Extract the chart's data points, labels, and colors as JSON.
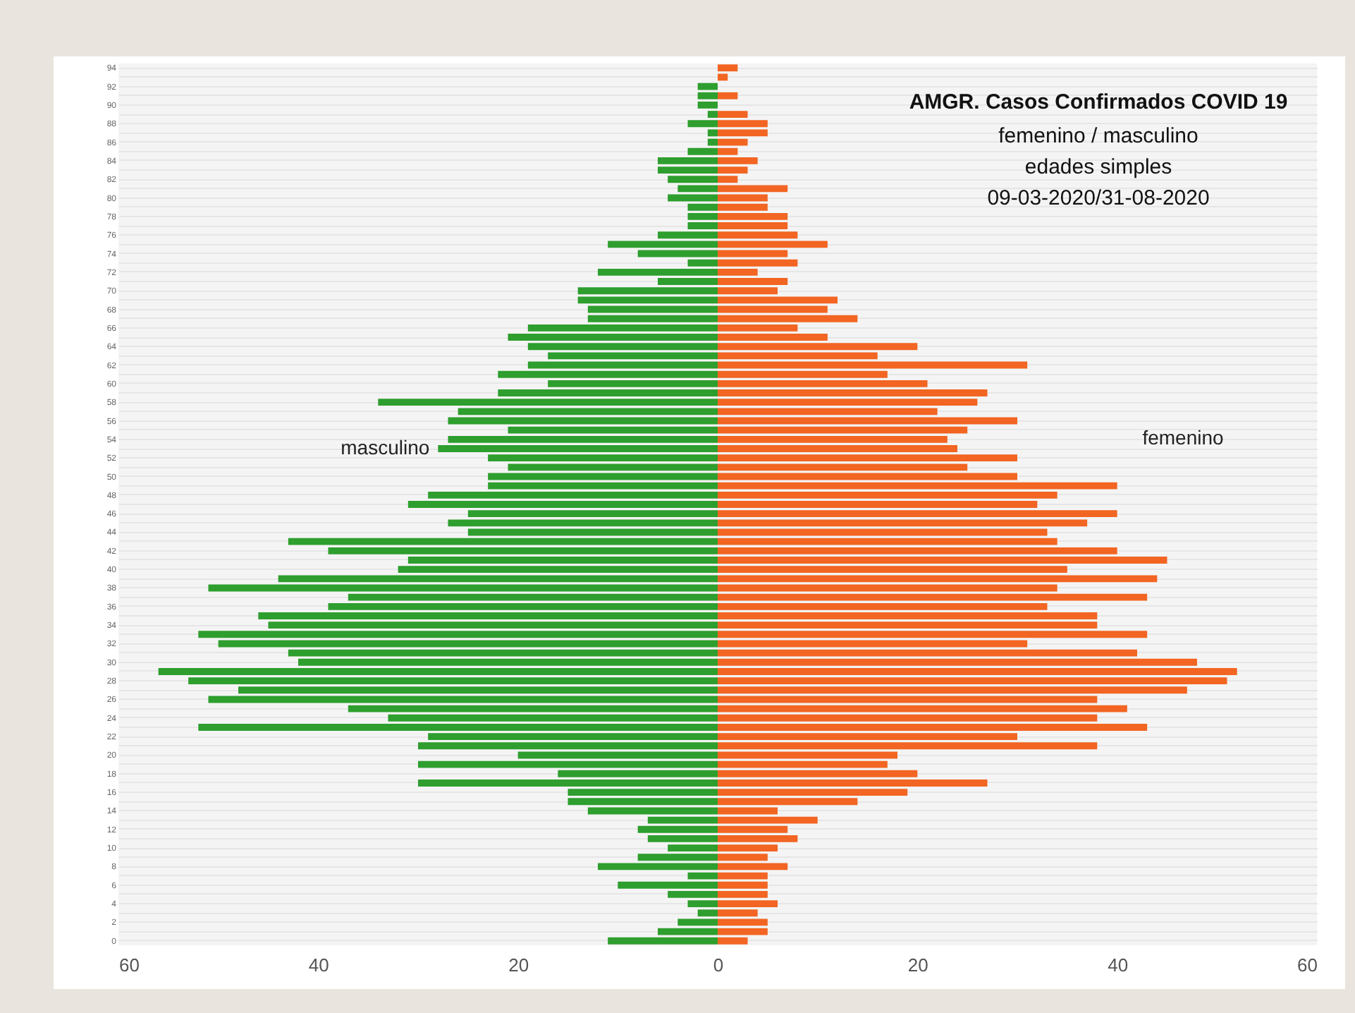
{
  "chart_data": {
    "type": "bar",
    "orientation": "horizontal",
    "title": "AMGR. Casos Confirmados COVID 19",
    "subtitle": "femenino / masculino\nedades simples\n09-03-2020/31-08-2020",
    "categories": [
      "94",
      null,
      "92",
      null,
      "90",
      null,
      "88",
      null,
      "86",
      null,
      "84",
      null,
      "82",
      null,
      "80",
      null,
      "78",
      null,
      "76",
      null,
      "74",
      null,
      "72",
      null,
      "70",
      null,
      "68",
      null,
      "66",
      null,
      "64",
      null,
      "62",
      null,
      "60",
      null,
      "58",
      null,
      "56",
      null,
      "54",
      null,
      "52",
      null,
      "50",
      null,
      "48",
      null,
      "46",
      null,
      "44",
      null,
      "42",
      null,
      "40",
      null,
      "38",
      null,
      "36",
      null,
      "34",
      null,
      "32",
      null,
      "30",
      null,
      "28",
      null,
      "26",
      null,
      "24",
      null,
      "22",
      null,
      "20",
      null,
      "18",
      null,
      "16",
      null,
      "14",
      null,
      "12",
      null,
      "10",
      null,
      "8",
      null,
      "6",
      null,
      "4",
      null,
      "2",
      null,
      "0"
    ],
    "series": [
      {
        "name": "masculino",
        "color": "#2e9e2e",
        "values": [
          0,
          0,
          -2,
          -2,
          -2,
          -1,
          -3,
          -1,
          -1,
          -3,
          -6,
          -6,
          -5,
          -4,
          -5,
          -3,
          -3,
          -3,
          -6,
          -11,
          -8,
          -3,
          -12,
          -6,
          -14,
          -14,
          -13,
          -13,
          -19,
          -21,
          -19,
          -17,
          -19,
          -22,
          -17,
          -22,
          -34,
          -26,
          -27,
          -21,
          -27,
          -28,
          -23,
          -21,
          -23,
          -23,
          -29,
          -31,
          -25,
          -27,
          -25,
          -43,
          -39,
          -31,
          -32,
          -44,
          -51,
          -37,
          -39,
          -46,
          -45,
          -52,
          -50,
          -43,
          -42,
          -56,
          -53,
          -48,
          -51,
          -37,
          -33,
          -52,
          -29,
          -30,
          -20,
          -30,
          -16,
          -30,
          -15,
          -15,
          -13,
          -7,
          -8,
          -7,
          -5,
          -8,
          -12,
          -3,
          -10,
          -5,
          -3,
          -2,
          -4,
          -6,
          -11
        ]
      },
      {
        "name": "femenino",
        "color": "#f26522",
        "values": [
          2,
          1,
          0,
          2,
          0,
          3,
          5,
          5,
          3,
          2,
          4,
          3,
          2,
          7,
          5,
          5,
          7,
          7,
          8,
          11,
          7,
          8,
          4,
          7,
          6,
          12,
          11,
          14,
          8,
          11,
          20,
          16,
          31,
          17,
          21,
          27,
          26,
          22,
          30,
          25,
          23,
          24,
          30,
          25,
          30,
          40,
          34,
          32,
          40,
          37,
          33,
          34,
          40,
          45,
          35,
          44,
          34,
          43,
          33,
          38,
          38,
          43,
          31,
          42,
          48,
          52,
          51,
          47,
          38,
          41,
          38,
          43,
          30,
          38,
          18,
          17,
          20,
          27,
          19,
          14,
          6,
          10,
          7,
          8,
          6,
          5,
          7,
          5,
          5,
          5,
          6,
          4,
          5,
          5,
          3
        ]
      }
    ],
    "xlim": [
      -60,
      60
    ],
    "xticks": [
      {
        "value": -60,
        "label": "60"
      },
      {
        "value": -40,
        "label": "40"
      },
      {
        "value": -20,
        "label": "20"
      },
      0,
      20,
      40,
      60
    ],
    "grid": "y",
    "legend": false,
    "stacked": true
  }
}
